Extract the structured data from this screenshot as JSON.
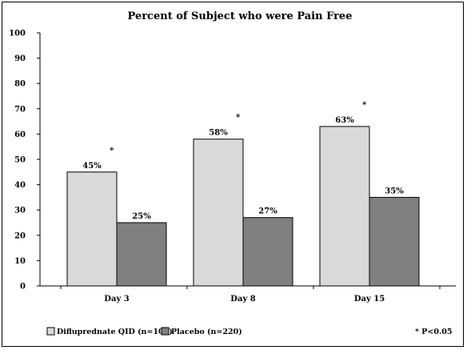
{
  "chart_data": {
    "type": "bar",
    "title": "Percent of Subject who were Pain Free",
    "categories": [
      "Day 3",
      "Day 8",
      "Day 15"
    ],
    "series": [
      {
        "name": "Difluprednate QID (n=107)",
        "values": [
          45,
          58,
          63
        ],
        "labels": [
          "45%",
          "58%",
          "63%"
        ],
        "color": "#d9d9d9"
      },
      {
        "name": "Placebo (n=220)",
        "values": [
          25,
          27,
          35
        ],
        "labels": [
          "25%",
          "27%",
          "35%"
        ],
        "color": "#808080"
      }
    ],
    "significance_marker": "*",
    "significant_categories": [
      0,
      1,
      2
    ],
    "significance_note": "* P<0.05",
    "ylim": [
      0,
      100
    ],
    "yticks": [
      "0",
      "10",
      "20",
      "30",
      "40",
      "50",
      "60",
      "70",
      "80",
      "90",
      "100"
    ],
    "grid": false,
    "legend_position": "bottom"
  }
}
